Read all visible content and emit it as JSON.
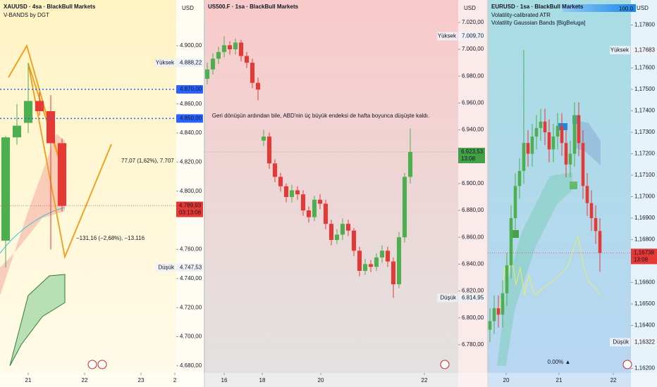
{
  "chart_data": [
    {
      "type": "candlestick",
      "title": "XAUUSD · 4sa · BlackBull Markets",
      "subtitles": [
        "V-BANDS by DGT"
      ],
      "currency": "USD",
      "up_color": "#4caf50",
      "down_color": "#e53935",
      "xlim": [
        0,
        15.625
      ],
      "xticks": [
        {
          "value": 2.5,
          "label": "21"
        },
        {
          "value": 7.5,
          "label": "22"
        },
        {
          "value": 12.5,
          "label": "23"
        },
        {
          "value": 15.5,
          "label": "2"
        }
      ],
      "ylim": [
        4675.1,
        4931.4
      ],
      "yticks": [
        {
          "value": 4900,
          "label": "4.900,00"
        },
        {
          "value": 4860,
          "label": "4.860,00"
        },
        {
          "value": 4840,
          "label": "4.840,00"
        },
        {
          "value": 4820,
          "label": "4.820,00"
        },
        {
          "value": 4800,
          "label": "4.800,00"
        },
        {
          "value": 4760,
          "label": "4.760,00"
        },
        {
          "value": 4740,
          "label": "4.740,00"
        },
        {
          "value": 4720,
          "label": "4.720,00"
        },
        {
          "value": 4700,
          "label": "4.700,00"
        },
        {
          "value": 4680,
          "label": "4.680,00"
        }
      ],
      "open": [
        4766,
        4837,
        4847,
        4862,
        4855,
        4833
      ],
      "high": [
        4838,
        4860,
        4888.22,
        4868,
        4866,
        4836
      ],
      "low": [
        4747.53,
        4832,
        4840,
        4852,
        4760,
        4786
      ],
      "close": [
        4837,
        4845,
        4862,
        4855,
        4833,
        4789.93
      ],
      "levels": [
        {
          "value": 4870,
          "label": "4.870,00",
          "color": "#2962ff"
        },
        {
          "value": 4850,
          "label": "4.850,00",
          "color": "#2962ff"
        }
      ],
      "high_marker": {
        "text": "Yüksek",
        "value": 4888.22,
        "label": "4.888,22"
      },
      "low_marker": {
        "text": "Düşük",
        "value": 4747.53,
        "label": "4.747,53"
      },
      "price": {
        "value": 4789.93,
        "label": "4.789,93",
        "timer": "03:13:08",
        "color": "#e53935"
      },
      "annotations": [
        "77,07 (1,62%), 7.707",
        "−131,16 (−2,68%), −13.116"
      ]
    },
    {
      "type": "candlestick",
      "title": "US500.F · 1sa · BlackBull Markets",
      "subtitles": [],
      "currency": "USD",
      "up_color": "#4caf50",
      "down_color": "#e53935",
      "xlim": [
        0,
        45
      ],
      "xticks": [
        {
          "value": 3.5,
          "label": "16"
        },
        {
          "value": 10.25,
          "label": "18"
        },
        {
          "value": 20.625,
          "label": "20"
        },
        {
          "value": 39,
          "label": "22"
        }
      ],
      "ylim": [
        6759,
        7036.7
      ],
      "yticks": [
        {
          "value": 7020,
          "label": "7.020,00"
        },
        {
          "value": 7000,
          "label": "7.000,00"
        },
        {
          "value": 6980,
          "label": "6.980,00"
        },
        {
          "value": 6960,
          "label": "6.960,00"
        },
        {
          "value": 6940,
          "label": "6.940,00"
        },
        {
          "value": 6900,
          "label": "6.900,00"
        },
        {
          "value": 6880,
          "label": "6.880,00"
        },
        {
          "value": 6860,
          "label": "6.860,00"
        },
        {
          "value": 6840,
          "label": "6.840,00"
        },
        {
          "value": 6820,
          "label": "6.820,00"
        },
        {
          "value": 6800,
          "label": "6.800,00"
        },
        {
          "value": 6780,
          "label": "6.780,00"
        }
      ],
      "open": [
        6978,
        6985,
        6993,
        6998,
        7003,
        7000,
        7005,
        6995,
        6990,
        6975,
        6932,
        6935,
        6915,
        6905,
        6898,
        6890,
        6895,
        6892,
        6880,
        6875,
        6888,
        6885,
        6870,
        6858,
        6862,
        6870,
        6865,
        6850,
        6835,
        6840,
        6838,
        6845,
        6850,
        6842,
        6825,
        6860,
        6905
      ],
      "high": [
        6990,
        6997,
        7002,
        7009.7,
        7006,
        7008,
        7007,
        6998,
        6993,
        6979,
        6940,
        6938,
        6918,
        6908,
        6900,
        6899,
        6898,
        6895,
        6883,
        6891,
        6892,
        6888,
        6873,
        6866,
        6874,
        6873,
        6867,
        6853,
        6844,
        6843,
        6848,
        6854,
        6853,
        6845,
        6864,
        6908,
        6941
      ],
      "low": [
        6974,
        6981,
        6989,
        6994,
        6996,
        6996,
        6991,
        6986,
        6971,
        6962,
        6928,
        6911,
        6901,
        6894,
        6886,
        6886,
        6888,
        6876,
        6871,
        6872,
        6881,
        6866,
        6854,
        6855,
        6858,
        6861,
        6846,
        6831,
        6832,
        6834,
        6835,
        6841,
        6838,
        6814.95,
        6822,
        6856,
        6900
      ],
      "close": [
        6985,
        6993,
        6998,
        7003,
        7000,
        7005,
        6995,
        6990,
        6975,
        6970,
        6935,
        6915,
        6905,
        6898,
        6890,
        6895,
        6892,
        6880,
        6875,
        6888,
        6885,
        6870,
        6858,
        6862,
        6870,
        6865,
        6850,
        6835,
        6840,
        6838,
        6845,
        6850,
        6842,
        6825,
        6860,
        6905,
        6923.53
      ],
      "levels": [],
      "high_marker": {
        "text": "Yüksek",
        "value": 7009.7,
        "label": "7.009,70"
      },
      "low_marker": {
        "text": "Düşük",
        "value": 6814.95,
        "label": "6.814,95"
      },
      "price": {
        "value": 6923.53,
        "label": "6.923,53",
        "timer": "13:08",
        "color": "#43a047"
      },
      "annotations": [
        "Geri dönüşün ardından bile, ABD'nin üç büyük endeksi de hafta boyunca düşüşte kaldı."
      ]
    },
    {
      "type": "candlestick",
      "title": "EURUSD · 1sa · BlackBull Markets",
      "subtitles": [
        "Volatility-calibrated ATR",
        "Volatility Gaussian Bands [BigBeluga]"
      ],
      "currency": "USD",
      "indicator_value": "100.0",
      "up_color": "#4caf50",
      "down_color": "#e53935",
      "xlim": [
        0,
        33.83
      ],
      "xticks": [
        {
          "value": 4.33,
          "label": "20"
        },
        {
          "value": 16.83,
          "label": "21"
        },
        {
          "value": 29.67,
          "label": "22"
        }
      ],
      "ylim": [
        1.161787,
        1.179164
      ],
      "yticks": [
        {
          "value": 1.178,
          "label": "1,17800"
        },
        {
          "value": 1.176,
          "label": "1,17600"
        },
        {
          "value": 1.175,
          "label": "1,17500"
        },
        {
          "value": 1.174,
          "label": "1,17400"
        },
        {
          "value": 1.173,
          "label": "1,17300"
        },
        {
          "value": 1.172,
          "label": "1,17200"
        },
        {
          "value": 1.171,
          "label": "1,17100"
        },
        {
          "value": 1.17,
          "label": "1,17000"
        },
        {
          "value": 1.169,
          "label": "1,16900"
        },
        {
          "value": 1.168,
          "label": "1,16800"
        },
        {
          "value": 1.166,
          "label": "1,16600"
        },
        {
          "value": 1.165,
          "label": "1,16500"
        },
        {
          "value": 1.164,
          "label": "1,16400"
        },
        {
          "value": 1.162,
          "label": "1,16200"
        }
      ],
      "open": [
        1.1638,
        1.1642,
        1.1648,
        1.1645,
        1.1655,
        1.1668,
        1.169,
        1.1705,
        1.1712,
        1.1725,
        1.172,
        1.1728,
        1.1732,
        1.1735,
        1.173,
        1.1722,
        1.1728,
        1.1733,
        1.1725,
        1.1715,
        1.172,
        1.1738,
        1.1725,
        1.1705,
        1.1697,
        1.169,
        1.1684
      ],
      "high": [
        1.1648,
        1.1654,
        1.1654,
        1.1661,
        1.1674,
        1.1696,
        1.1711,
        1.1718,
        1.17683,
        1.1731,
        1.1734,
        1.1738,
        1.1741,
        1.1741,
        1.1736,
        1.1734,
        1.1739,
        1.1739,
        1.1731,
        1.1726,
        1.1744,
        1.1744,
        1.1731,
        1.1711,
        1.1703,
        1.1696,
        1.169
      ],
      "low": [
        1.16322,
        1.1636,
        1.1639,
        1.1639,
        1.1649,
        1.1662,
        1.1684,
        1.1699,
        1.1706,
        1.1714,
        1.1714,
        1.1722,
        1.1726,
        1.1724,
        1.1716,
        1.1716,
        1.1722,
        1.1719,
        1.1709,
        1.1709,
        1.1714,
        1.1719,
        1.1699,
        1.1691,
        1.1684,
        1.1678,
        1.1665
      ],
      "close": [
        1.1642,
        1.1648,
        1.1645,
        1.1655,
        1.1668,
        1.169,
        1.1705,
        1.1712,
        1.1725,
        1.172,
        1.1728,
        1.1732,
        1.1735,
        1.173,
        1.1722,
        1.1728,
        1.1733,
        1.1725,
        1.1715,
        1.172,
        1.1738,
        1.1725,
        1.1705,
        1.1697,
        1.169,
        1.1684,
        1.16738
      ],
      "levels": [],
      "high_marker": {
        "text": "Yüksek",
        "value": 1.17683,
        "label": "1,17683"
      },
      "low_marker": {
        "text": "Düşük",
        "value": 1.16322,
        "label": "1,16322"
      },
      "price": {
        "value": 1.16738,
        "label": "1,16738",
        "timer": "13:08",
        "color": "#e53935"
      },
      "annotations": [
        "0.00% ▲"
      ]
    }
  ]
}
